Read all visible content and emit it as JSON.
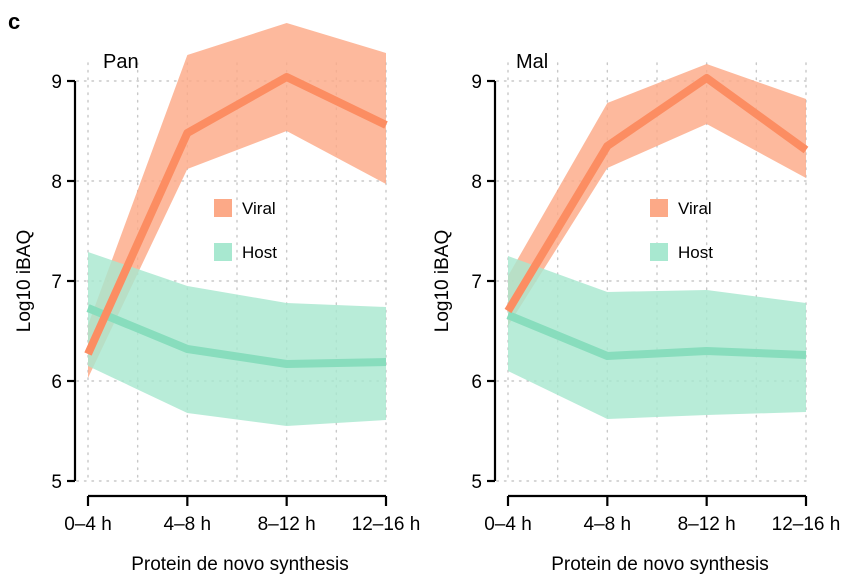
{
  "figure": {
    "panel_letter": "c"
  },
  "chart_data": [
    {
      "type": "area",
      "title": "Pan",
      "xlabel": "Protein de novo synthesis",
      "ylabel": "Log10 iBAQ",
      "categories": [
        "0–4 h",
        "4–8 h",
        "8–12 h",
        "12–16 h"
      ],
      "ylim": [
        5,
        9
      ],
      "yticks": [
        5,
        6,
        7,
        8,
        9
      ],
      "grid": true,
      "legend_position": "center",
      "series": [
        {
          "name": "Viral",
          "color": "#fc8d62",
          "band_color": "#fca987",
          "values": [
            6.27,
            8.48,
            9.04,
            8.56
          ],
          "upper": [
            6.56,
            9.26,
            9.58,
            9.28
          ],
          "lower": [
            6.03,
            8.12,
            8.5,
            7.97
          ]
        },
        {
          "name": "Host",
          "color": "#88ddbd",
          "band_color": "#a8e8d0",
          "values": [
            6.73,
            6.32,
            6.17,
            6.19
          ],
          "upper": [
            7.29,
            6.95,
            6.78,
            6.74
          ],
          "lower": [
            6.15,
            5.68,
            5.55,
            5.61
          ]
        }
      ]
    },
    {
      "type": "area",
      "title": "Mal",
      "xlabel": "Protein de novo synthesis",
      "ylabel": "Log10 iBAQ",
      "categories": [
        "0–4 h",
        "4–8 h",
        "8–12 h",
        "12–16 h"
      ],
      "ylim": [
        5,
        9
      ],
      "yticks": [
        5,
        6,
        7,
        8,
        9
      ],
      "grid": true,
      "legend_position": "center",
      "series": [
        {
          "name": "Viral",
          "color": "#fc8d62",
          "band_color": "#fca987",
          "values": [
            6.7,
            8.35,
            9.03,
            8.31
          ],
          "upper": [
            7.05,
            8.78,
            9.17,
            8.82
          ],
          "lower": [
            6.55,
            8.13,
            8.57,
            8.03
          ]
        },
        {
          "name": "Host",
          "color": "#88ddbd",
          "band_color": "#a8e8d0",
          "values": [
            6.66,
            6.25,
            6.3,
            6.26
          ],
          "upper": [
            7.25,
            6.89,
            6.91,
            6.78
          ],
          "lower": [
            6.1,
            5.62,
            5.66,
            5.69
          ]
        }
      ]
    }
  ]
}
